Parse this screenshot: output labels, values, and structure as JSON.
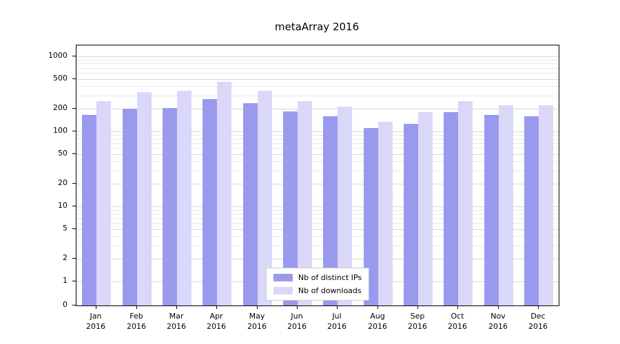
{
  "chart_data": {
    "type": "bar",
    "title": "metaArray 2016",
    "categories": [
      "Jan 2016",
      "Feb 2016",
      "Mar 2016",
      "Apr 2016",
      "May 2016",
      "Jun 2016",
      "Jul 2016",
      "Aug 2016",
      "Sep 2016",
      "Oct 2016",
      "Nov 2016",
      "Dec 2016"
    ],
    "series": [
      {
        "name": "Nb of distinct IPs",
        "color": "#9999ee",
        "values": [
          165,
          200,
          205,
          270,
          235,
          185,
          158,
          110,
          125,
          180,
          165,
          160
        ]
      },
      {
        "name": "Nb of downloads",
        "color": "#dad7f8",
        "values": [
          255,
          330,
          350,
          455,
          350,
          255,
          215,
          135,
          180,
          255,
          225,
          225
        ]
      }
    ],
    "yscale": "symlog",
    "yticks": [
      0,
      1,
      2,
      5,
      10,
      20,
      50,
      100,
      200,
      500,
      1000
    ],
    "ylim": [
      0,
      1400
    ],
    "grid_major_color": "#d8d8d8",
    "grid_minor_color": "#e8e8e8",
    "axis_color": "#000000",
    "legend_position": "lower center"
  }
}
